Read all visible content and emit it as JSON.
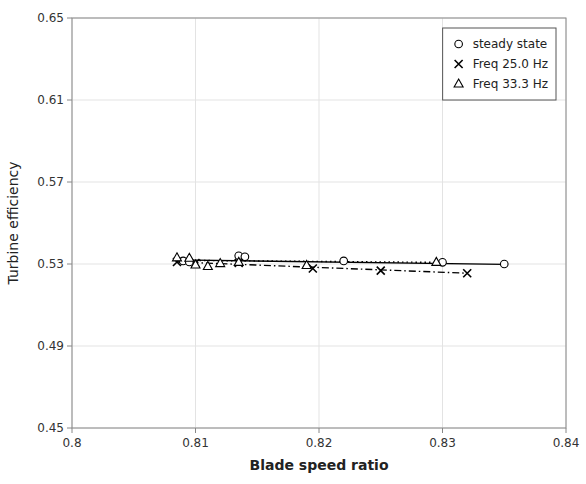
{
  "chart_data": {
    "type": "scatter",
    "xlabel": "Blade speed ratio",
    "ylabel": "Turbine efficiency",
    "xlim": [
      0.8,
      0.84
    ],
    "ylim": [
      0.45,
      0.65
    ],
    "xticks": [
      0.8,
      0.81,
      0.82,
      0.83,
      0.84
    ],
    "yticks": [
      0.45,
      0.49,
      0.53,
      0.57,
      0.61,
      0.65
    ],
    "grid": true,
    "legend": "upper right",
    "series": [
      {
        "name": "steady state",
        "color": "#000000",
        "marker": "circle",
        "line_style": "solid",
        "x": [
          0.809,
          0.8095,
          0.8135,
          0.814,
          0.822,
          0.83,
          0.835
        ],
        "values": [
          0.5315,
          0.531,
          0.534,
          0.5335,
          0.5315,
          0.5308,
          0.53
        ],
        "line_x": [
          0.8085,
          0.835
        ],
        "line_values": [
          0.532,
          0.5298
        ]
      },
      {
        "name": "Freq 25.0 Hz",
        "color": "#000000",
        "marker": "x",
        "line_style": "dashdot",
        "x": [
          0.8085,
          0.81,
          0.8135,
          0.8195,
          0.825,
          0.832
        ],
        "values": [
          0.531,
          0.5305,
          0.5305,
          0.5278,
          0.5268,
          0.5255
        ],
        "line_x": [
          0.8085,
          0.832
        ],
        "line_values": [
          0.531,
          0.5255
        ]
      },
      {
        "name": "Freq 33.3 Hz",
        "color": "#000000",
        "marker": "triangle",
        "line_style": "dotted",
        "x": [
          0.8085,
          0.8095,
          0.81,
          0.811,
          0.812,
          0.8135,
          0.819,
          0.8295
        ],
        "values": [
          0.533,
          0.5328,
          0.5295,
          0.5288,
          0.5302,
          0.5308,
          0.5293,
          0.5308
        ],
        "line_x": [
          0.8085,
          0.8295
        ],
        "line_values": [
          0.5318,
          0.5308
        ]
      }
    ]
  }
}
